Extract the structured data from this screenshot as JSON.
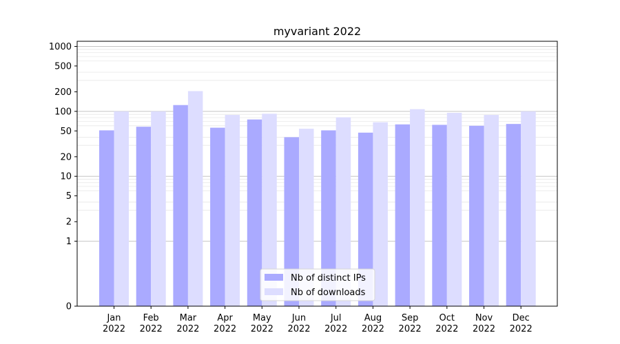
{
  "chart_data": {
    "type": "bar",
    "title": "myvariant 2022",
    "xlabel": "",
    "ylabel": "",
    "yscale": "symlog",
    "ylim": [
      0,
      1200
    ],
    "yticks": [
      0,
      1,
      2,
      5,
      10,
      20,
      50,
      100,
      200,
      500,
      1000
    ],
    "grid": true,
    "legend_position": "bottom-center",
    "categories": [
      [
        "Jan",
        "2022"
      ],
      [
        "Feb",
        "2022"
      ],
      [
        "Mar",
        "2022"
      ],
      [
        "Apr",
        "2022"
      ],
      [
        "May",
        "2022"
      ],
      [
        "Jun",
        "2022"
      ],
      [
        "Jul",
        "2022"
      ],
      [
        "Aug",
        "2022"
      ],
      [
        "Sep",
        "2022"
      ],
      [
        "Oct",
        "2022"
      ],
      [
        "Nov",
        "2022"
      ],
      [
        "Dec",
        "2022"
      ]
    ],
    "series": [
      {
        "name": "Nb of distinct IPs",
        "color": "#aaaaff",
        "values": [
          51,
          58,
          125,
          56,
          75,
          40,
          51,
          47,
          63,
          62,
          60,
          64
        ]
      },
      {
        "name": "Nb of downloads",
        "color": "#ddddff",
        "values": [
          100,
          100,
          205,
          88,
          92,
          54,
          81,
          68,
          108,
          95,
          88,
          100
        ]
      }
    ]
  }
}
